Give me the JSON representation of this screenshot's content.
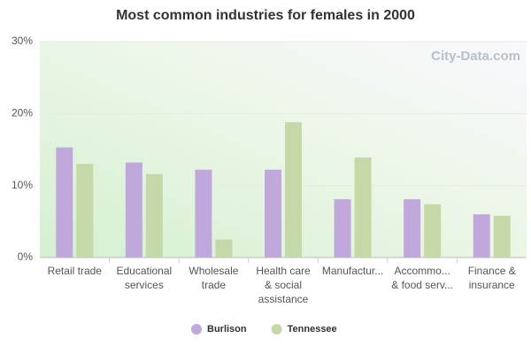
{
  "chart_data": {
    "type": "bar",
    "title": "Most common industries for females in 2000",
    "watermark": "City-Data.com",
    "categories": [
      [
        "Retail trade"
      ],
      [
        "Educational",
        "services"
      ],
      [
        "Wholesale",
        "trade"
      ],
      [
        "Health care",
        "& social",
        "assistance"
      ],
      [
        "Manufactur..."
      ],
      [
        "Accommo...",
        "& food serv..."
      ],
      [
        "Finance &",
        "insurance"
      ]
    ],
    "series": [
      {
        "name": "Burlison",
        "color": "#c0a8dc",
        "values": [
          15.3,
          13.2,
          12.2,
          12.2,
          8.1,
          8.1,
          6.0
        ]
      },
      {
        "name": "Tennessee",
        "color": "#c5d9a8",
        "values": [
          13.0,
          11.6,
          2.5,
          18.8,
          13.9,
          7.4,
          5.8
        ]
      }
    ],
    "ylim": [
      0,
      30
    ],
    "yticks": [
      {
        "value": 0,
        "label": "0%"
      },
      {
        "value": 10,
        "label": "10%"
      },
      {
        "value": 20,
        "label": "20%"
      },
      {
        "value": 30,
        "label": "30%"
      }
    ],
    "grid": true
  }
}
